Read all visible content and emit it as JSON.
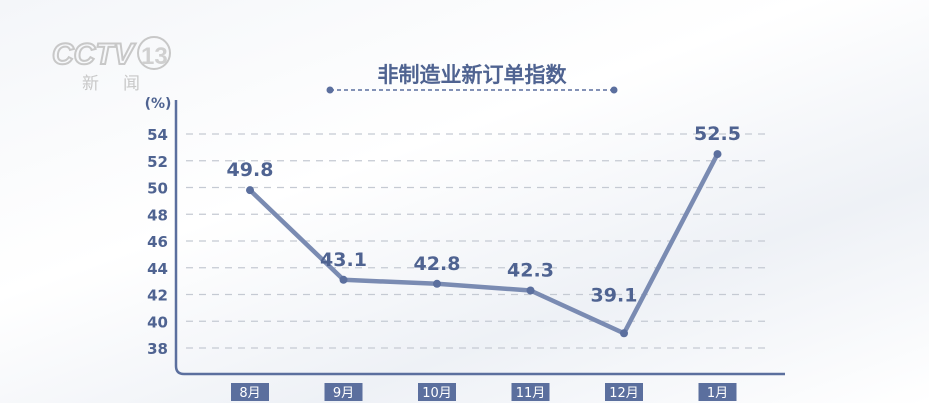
{
  "logo": {
    "text": "CCTV13",
    "subtext": "新闻"
  },
  "chart_data": {
    "type": "line",
    "title": "非制造业新订单指数",
    "ylabel": "(%)",
    "xlabel": "",
    "categories": [
      "8月",
      "9月",
      "10月",
      "11月",
      "12月",
      "1月"
    ],
    "values": [
      49.8,
      43.1,
      42.8,
      42.3,
      39.1,
      52.5
    ],
    "data_labels": [
      "49.8",
      "43.1",
      "42.8",
      "42.3",
      "39.1",
      "52.5"
    ],
    "yticks": [
      38,
      40,
      42,
      44,
      46,
      48,
      50,
      52,
      54
    ],
    "ylim": [
      36,
      56.5
    ],
    "grid": true,
    "colors": {
      "line": "#7a8bb2",
      "label": "#4f6391",
      "category_box": "#5b6f9e",
      "axis": "#5b6f9e",
      "grid": "#c5cad3"
    }
  }
}
